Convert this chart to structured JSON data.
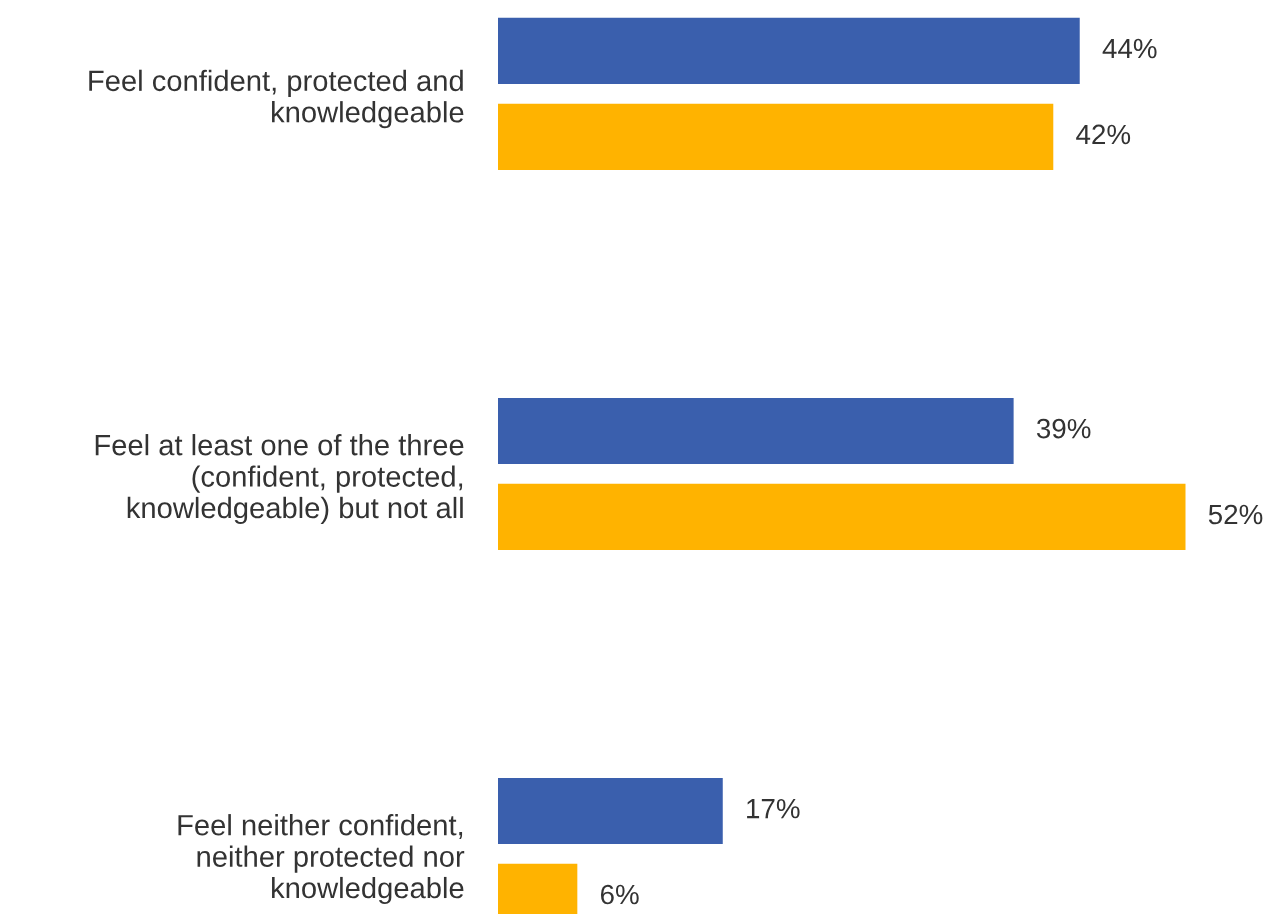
{
  "chart_data": {
    "type": "bar",
    "orientation": "horizontal",
    "categories": [
      "Feel confident, protected and\nknowledgeable",
      "Feel at least one of the three\n(confident, protected,\nknowledgeable) but not all",
      "Feel neither confident,\nneither protected nor\nknowledgeable"
    ],
    "series": [
      {
        "color": "#3a5fad",
        "values": [
          44,
          39,
          17
        ],
        "value_labels": [
          "44%",
          "39%",
          "17%"
        ]
      },
      {
        "color": "#ffb300",
        "values": [
          42,
          52,
          6
        ],
        "value_labels": [
          "42%",
          "52%",
          "6%"
        ]
      }
    ]
  }
}
